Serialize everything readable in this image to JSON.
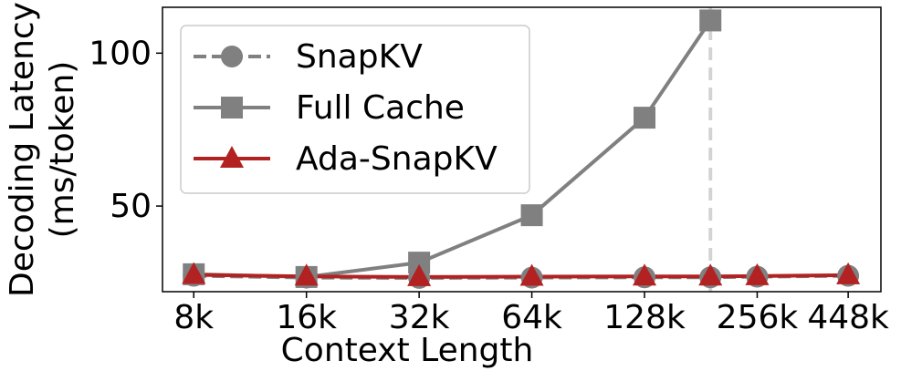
{
  "chart_data": {
    "type": "line",
    "xlabel": "Context Length",
    "ylabel": [
      "Decoding Latency",
      "(ms/token)"
    ],
    "x": [
      8,
      16,
      32,
      64,
      128,
      192,
      256,
      448
    ],
    "xscale": "log",
    "xlim": [
      6.6,
      548
    ],
    "xticks": [
      {
        "value": 8,
        "label": "8k"
      },
      {
        "value": 16,
        "label": "16k"
      },
      {
        "value": 32,
        "label": "32k"
      },
      {
        "value": 64,
        "label": "64k"
      },
      {
        "value": 128,
        "label": "128k"
      },
      {
        "value": 256,
        "label": "256k"
      },
      {
        "value": 448,
        "label": "448k"
      }
    ],
    "ylim": [
      22,
      115
    ],
    "yticks": [
      50,
      100
    ],
    "vlines": [
      192
    ],
    "legend": "upper left",
    "series": [
      {
        "name": "SnapKV",
        "color": "#808080",
        "dash": true,
        "marker": "circle",
        "values": [
          27.2,
          26.6,
          26.5,
          26.6,
          26.7,
          26.7,
          26.9,
          27.2
        ]
      },
      {
        "name": "Full Cache",
        "color": "#808080",
        "dash": false,
        "marker": "square",
        "values": [
          27.7,
          26.8,
          31.5,
          47,
          78.9,
          110.7,
          null,
          null
        ]
      },
      {
        "name": "Ada-SnapKV",
        "color": "#b22222",
        "dash": false,
        "marker": "triangle",
        "values": [
          27.5,
          27.0,
          26.8,
          26.9,
          27.0,
          27.0,
          27.1,
          27.4
        ]
      }
    ]
  }
}
